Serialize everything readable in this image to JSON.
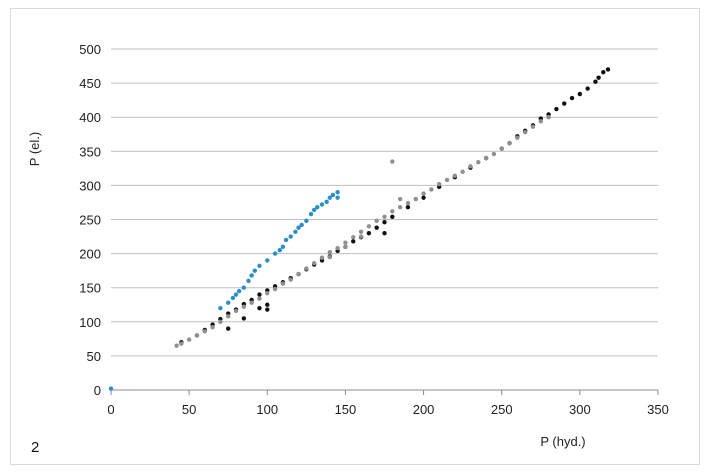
{
  "figure_number": "2",
  "colors": {
    "black_series": "#111111",
    "gray_series": "#909090",
    "blue_series": "#2a8fc6",
    "grid": "#bfbfbf"
  },
  "chart_data": {
    "type": "scatter",
    "xlabel": "P (hyd.)",
    "ylabel": "P (el.)",
    "xlim": [
      0,
      350
    ],
    "ylim": [
      0,
      500
    ],
    "xticks": [
      "0",
      "50",
      "100",
      "150",
      "200",
      "250",
      "300",
      "350"
    ],
    "yticks": [
      "0",
      "50",
      "100",
      "150",
      "200",
      "250",
      "300",
      "350",
      "400",
      "450",
      "500"
    ],
    "grid": "horizontal",
    "series": [
      {
        "color": "#111111",
        "points": [
          [
            45,
            70
          ],
          [
            55,
            80
          ],
          [
            60,
            88
          ],
          [
            65,
            96
          ],
          [
            70,
            104
          ],
          [
            75,
            112
          ],
          [
            80,
            118
          ],
          [
            85,
            126
          ],
          [
            90,
            132
          ],
          [
            95,
            140
          ],
          [
            100,
            146
          ],
          [
            105,
            152
          ],
          [
            110,
            158
          ],
          [
            115,
            164
          ],
          [
            120,
            170
          ],
          [
            125,
            177
          ],
          [
            130,
            184
          ],
          [
            135,
            190
          ],
          [
            140,
            196
          ],
          [
            145,
            204
          ],
          [
            150,
            210
          ],
          [
            155,
            218
          ],
          [
            160,
            224
          ],
          [
            165,
            230
          ],
          [
            170,
            238
          ],
          [
            175,
            246
          ],
          [
            180,
            254
          ],
          [
            190,
            268
          ],
          [
            200,
            282
          ],
          [
            210,
            298
          ],
          [
            220,
            312
          ],
          [
            230,
            326
          ],
          [
            240,
            340
          ],
          [
            250,
            354
          ],
          [
            255,
            362
          ],
          [
            260,
            372
          ],
          [
            265,
            380
          ],
          [
            270,
            388
          ],
          [
            275,
            398
          ],
          [
            280,
            404
          ],
          [
            285,
            412
          ],
          [
            290,
            420
          ],
          [
            295,
            428
          ],
          [
            300,
            434
          ],
          [
            305,
            442
          ],
          [
            310,
            452
          ],
          [
            312,
            458
          ],
          [
            315,
            466
          ],
          [
            318,
            470
          ],
          [
            75,
            90
          ],
          [
            85,
            105
          ],
          [
            95,
            120
          ],
          [
            100,
            125
          ],
          [
            100,
            118
          ],
          [
            175,
            230
          ]
        ]
      },
      {
        "color": "#909090",
        "points": [
          [
            42,
            65
          ],
          [
            45,
            68
          ],
          [
            50,
            74
          ],
          [
            55,
            80
          ],
          [
            60,
            86
          ],
          [
            65,
            92
          ],
          [
            70,
            100
          ],
          [
            75,
            108
          ],
          [
            80,
            116
          ],
          [
            85,
            122
          ],
          [
            90,
            128
          ],
          [
            95,
            134
          ],
          [
            100,
            142
          ],
          [
            105,
            148
          ],
          [
            110,
            156
          ],
          [
            115,
            162
          ],
          [
            120,
            170
          ],
          [
            125,
            178
          ],
          [
            130,
            186
          ],
          [
            135,
            194
          ],
          [
            140,
            202
          ],
          [
            145,
            208
          ],
          [
            150,
            216
          ],
          [
            155,
            224
          ],
          [
            160,
            232
          ],
          [
            165,
            240
          ],
          [
            170,
            248
          ],
          [
            175,
            254
          ],
          [
            180,
            262
          ],
          [
            185,
            268
          ],
          [
            190,
            274
          ],
          [
            195,
            280
          ],
          [
            200,
            288
          ],
          [
            205,
            294
          ],
          [
            210,
            302
          ],
          [
            215,
            308
          ],
          [
            220,
            314
          ],
          [
            225,
            320
          ],
          [
            230,
            328
          ],
          [
            235,
            334
          ],
          [
            240,
            340
          ],
          [
            245,
            346
          ],
          [
            250,
            354
          ],
          [
            255,
            362
          ],
          [
            260,
            370
          ],
          [
            265,
            378
          ],
          [
            270,
            386
          ],
          [
            275,
            394
          ],
          [
            280,
            400
          ],
          [
            140,
            195
          ],
          [
            150,
            210
          ],
          [
            160,
            225
          ],
          [
            180,
            335
          ],
          [
            185,
            280
          ]
        ]
      },
      {
        "color": "#2a8fc6",
        "points": [
          [
            0,
            2
          ],
          [
            70,
            120
          ],
          [
            75,
            128
          ],
          [
            78,
            135
          ],
          [
            80,
            140
          ],
          [
            82,
            145
          ],
          [
            85,
            150
          ],
          [
            88,
            160
          ],
          [
            90,
            168
          ],
          [
            92,
            175
          ],
          [
            95,
            182
          ],
          [
            100,
            190
          ],
          [
            105,
            200
          ],
          [
            108,
            205
          ],
          [
            110,
            210
          ],
          [
            112,
            220
          ],
          [
            115,
            225
          ],
          [
            118,
            232
          ],
          [
            120,
            238
          ],
          [
            122,
            242
          ],
          [
            125,
            248
          ],
          [
            128,
            258
          ],
          [
            130,
            264
          ],
          [
            132,
            268
          ],
          [
            135,
            272
          ],
          [
            138,
            276
          ],
          [
            140,
            282
          ],
          [
            142,
            286
          ],
          [
            145,
            290
          ],
          [
            145,
            282
          ]
        ]
      }
    ]
  }
}
